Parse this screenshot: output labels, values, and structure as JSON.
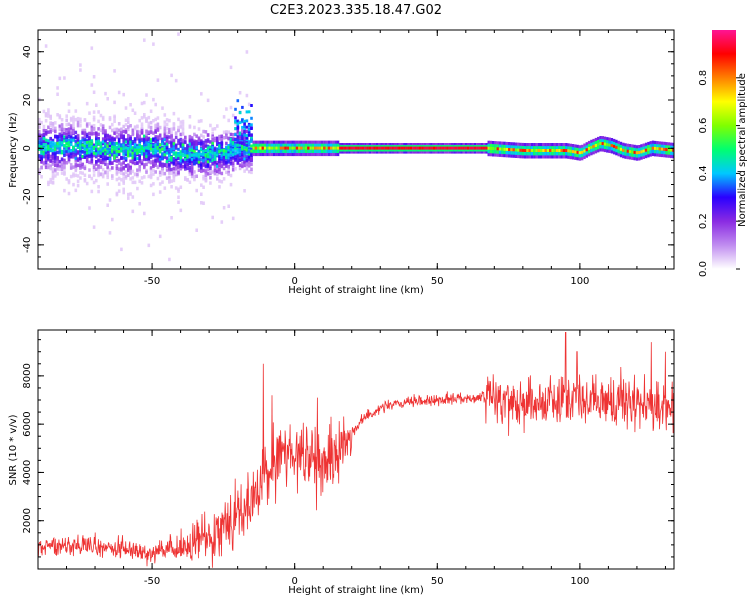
{
  "title": "C2E3.2023.335.18.47.G02",
  "chart_data": [
    {
      "type": "heatmap",
      "xlabel": "Height of straight line (km)",
      "ylabel": "Frequency (Hz)",
      "xlim": [
        -90,
        133
      ],
      "ylim": [
        -50,
        49
      ],
      "xticks": [
        "-50",
        "0",
        "50",
        "100"
      ],
      "yticks": [
        "-40",
        "-20",
        "0",
        "20",
        "40"
      ],
      "colorbar": {
        "label": "Normalized spectral amplitude",
        "range": [
          0,
          1
        ],
        "ticks": [
          "0.0",
          "0.2",
          "0.4",
          "0.6",
          "0.8"
        ],
        "colors": [
          "#ffffff",
          "#c08cf0",
          "#8a2be2",
          "#2a00ff",
          "#00c8ff",
          "#00ff70",
          "#80ff00",
          "#ffff00",
          "#ff8000",
          "#ff0000",
          "#ff1493"
        ]
      },
      "ridge_frequency_hz": [
        [
          -90,
          0
        ],
        [
          -80,
          1
        ],
        [
          -70,
          0
        ],
        [
          -60,
          -1
        ],
        [
          -50,
          0
        ],
        [
          -45,
          -2
        ],
        [
          -35,
          -3
        ],
        [
          -25,
          -2
        ],
        [
          -20,
          0
        ],
        [
          -10,
          0
        ],
        [
          0,
          0
        ],
        [
          20,
          0
        ],
        [
          40,
          0
        ],
        [
          60,
          0
        ],
        [
          67,
          0
        ],
        [
          80,
          -1
        ],
        [
          95,
          -1
        ],
        [
          100,
          -2
        ],
        [
          103,
          0
        ],
        [
          107,
          2
        ],
        [
          111,
          1
        ],
        [
          115,
          -1
        ],
        [
          120,
          -2
        ],
        [
          125,
          0
        ],
        [
          133,
          -1
        ]
      ]
    },
    {
      "type": "line",
      "xlabel": "Height of straight line (km)",
      "ylabel": "SNR (10 * v/v)",
      "xlim": [
        -90,
        133
      ],
      "ylim": [
        0,
        9900
      ],
      "xticks": [
        "-50",
        "0",
        "50",
        "100"
      ],
      "yticks": [
        "2000",
        "4000",
        "6000",
        "8000"
      ],
      "color": "#ee3333",
      "trend": [
        [
          -90,
          900
        ],
        [
          -80,
          1000
        ],
        [
          -70,
          900
        ],
        [
          -60,
          800
        ],
        [
          -50,
          700
        ],
        [
          -40,
          800
        ],
        [
          -30,
          1400
        ],
        [
          -22,
          2200
        ],
        [
          -15,
          2800
        ],
        [
          -10,
          3800
        ],
        [
          -5,
          4800
        ],
        [
          0,
          4900
        ],
        [
          5,
          4500
        ],
        [
          10,
          4400
        ],
        [
          15,
          4700
        ],
        [
          20,
          5700
        ],
        [
          25,
          6300
        ],
        [
          30,
          6700
        ],
        [
          40,
          6900
        ],
        [
          50,
          7000
        ],
        [
          60,
          7100
        ],
        [
          67,
          7100
        ],
        [
          75,
          7000
        ],
        [
          85,
          6900
        ],
        [
          95,
          7100
        ],
        [
          105,
          6900
        ],
        [
          115,
          7000
        ],
        [
          125,
          6700
        ],
        [
          133,
          6700
        ]
      ],
      "peaks": [
        [
          -11,
          8500
        ],
        [
          -8,
          7200
        ],
        [
          8,
          7100
        ],
        [
          95,
          9800
        ],
        [
          99,
          9000
        ],
        [
          125,
          9400
        ],
        [
          130,
          9000
        ]
      ]
    }
  ]
}
